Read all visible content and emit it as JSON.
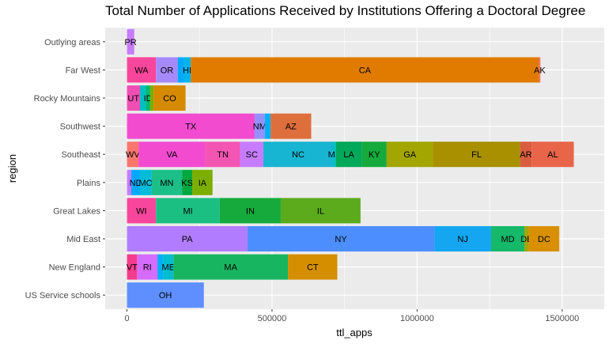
{
  "chart_data": {
    "type": "bar",
    "orientation": "horizontal",
    "stacked": true,
    "title": "Total Number of Applications Received by Institutions Offering a Doctoral Degree",
    "xlabel": "ttl_apps",
    "ylabel": "region",
    "xlim": [
      -75000,
      1645000
    ],
    "xticks": [
      0,
      500000,
      1000000,
      1500000
    ],
    "xtick_labels": [
      "0",
      "500000",
      "1000000",
      "1500000"
    ],
    "grid": true,
    "background": "#ebebeb",
    "gridline_color": "#ffffff",
    "categories": [
      "Outlying areas",
      "Far West",
      "Rocky Mountains",
      "Southwest",
      "Southeast",
      "Plains",
      "Great Lakes",
      "Mid East",
      "New England",
      "US Service schools"
    ],
    "bars": [
      {
        "region": "Outlying areas",
        "segments": [
          {
            "label": "PR",
            "value": 25000,
            "color": "#c77cff"
          }
        ]
      },
      {
        "region": "Far West",
        "segments": [
          {
            "label": "WA",
            "value": 100000,
            "color": "#f8469c"
          },
          {
            "label": "OR",
            "value": 75000,
            "color": "#a58aff"
          },
          {
            "label": "",
            "value": 20000,
            "color": "#00a9ff"
          },
          {
            "label": "HI",
            "value": 25000,
            "color": "#00b4ef"
          },
          {
            "label": "CA",
            "value": 1200000,
            "color": "#e07b00"
          },
          {
            "label": "AK",
            "value": 5000,
            "color": "#f8766d"
          }
        ]
      },
      {
        "region": "Rocky Mountains",
        "segments": [
          {
            "label": "UT",
            "value": 45000,
            "color": "#ef4fb3"
          },
          {
            "label": "",
            "value": 20000,
            "color": "#00bfc4"
          },
          {
            "label": "ID",
            "value": 15000,
            "color": "#00ba6d"
          },
          {
            "label": "",
            "value": 12000,
            "color": "#7cae00"
          },
          {
            "label": "CO",
            "value": 110000,
            "color": "#d58a00"
          }
        ]
      },
      {
        "region": "Southwest",
        "segments": [
          {
            "label": "TX",
            "value": 440000,
            "color": "#f24bd0"
          },
          {
            "label": "NM",
            "value": 35000,
            "color": "#9590ff"
          },
          {
            "label": "",
            "value": 20000,
            "color": "#00b0f6"
          },
          {
            "label": "AZ",
            "value": 140000,
            "color": "#de6f3c"
          }
        ]
      },
      {
        "region": "Southeast",
        "segments": [
          {
            "label": "WV",
            "value": 40000,
            "color": "#f8766d"
          },
          {
            "label": "VA",
            "value": 230000,
            "color": "#f24bd0"
          },
          {
            "label": "TN",
            "value": 120000,
            "color": "#f355b3"
          },
          {
            "label": "SC",
            "value": 80000,
            "color": "#c77cff"
          },
          {
            "label": "NC",
            "value": 240000,
            "color": "#17b5d1"
          },
          {
            "label": "MS",
            "value": 10000,
            "color": "#00bfc4"
          },
          {
            "label": "LA",
            "value": 90000,
            "color": "#00a859"
          },
          {
            "label": "KY",
            "value": 85000,
            "color": "#16aa3c"
          },
          {
            "label": "GA",
            "value": 160000,
            "color": "#a3a500"
          },
          {
            "label": "FL",
            "value": 300000,
            "color": "#a89000"
          },
          {
            "label": "AR",
            "value": 40000,
            "color": "#d95e3f"
          },
          {
            "label": "AL",
            "value": 145000,
            "color": "#e86549"
          }
        ]
      },
      {
        "region": "Plains",
        "segments": [
          {
            "label": "",
            "value": 15000,
            "color": "#c77cff"
          },
          {
            "label": "ND",
            "value": 30000,
            "color": "#00a9ff"
          },
          {
            "label": "MO",
            "value": 40000,
            "color": "#00bcd8"
          },
          {
            "label": "MN",
            "value": 105000,
            "color": "#1cbf88"
          },
          {
            "label": "KS",
            "value": 35000,
            "color": "#00a83e"
          },
          {
            "label": "IA",
            "value": 70000,
            "color": "#7cae00"
          }
        ]
      },
      {
        "region": "Great Lakes",
        "segments": [
          {
            "label": "WI",
            "value": 100000,
            "color": "#f8469c"
          },
          {
            "label": "MI",
            "value": 220000,
            "color": "#1cbf82"
          },
          {
            "label": "IN",
            "value": 210000,
            "color": "#16aa3c"
          },
          {
            "label": "IL",
            "value": 275000,
            "color": "#5bab1d"
          }
        ]
      },
      {
        "region": "Mid East",
        "segments": [
          {
            "label": "PA",
            "value": 415000,
            "color": "#b17cff"
          },
          {
            "label": "NY",
            "value": 645000,
            "color": "#4d8eff"
          },
          {
            "label": "NJ",
            "value": 195000,
            "color": "#14a6f0"
          },
          {
            "label": "MD",
            "value": 115000,
            "color": "#16b869"
          },
          {
            "label": "DE",
            "value": 15000,
            "color": "#a3a500"
          },
          {
            "label": "DC",
            "value": 105000,
            "color": "#d89000"
          }
        ]
      },
      {
        "region": "New England",
        "segments": [
          {
            "label": "VT",
            "value": 35000,
            "color": "#f43c8c"
          },
          {
            "label": "RI",
            "value": 70000,
            "color": "#d56cff"
          },
          {
            "label": "",
            "value": 20000,
            "color": "#00b0f6"
          },
          {
            "label": "ME",
            "value": 35000,
            "color": "#00bcd0"
          },
          {
            "label": "MA",
            "value": 395000,
            "color": "#18b560"
          },
          {
            "label": "CT",
            "value": 170000,
            "color": "#d58e00"
          }
        ]
      },
      {
        "region": "US Service schools",
        "segments": [
          {
            "label": "OH",
            "value": 265000,
            "color": "#5f8fff"
          }
        ]
      }
    ]
  }
}
